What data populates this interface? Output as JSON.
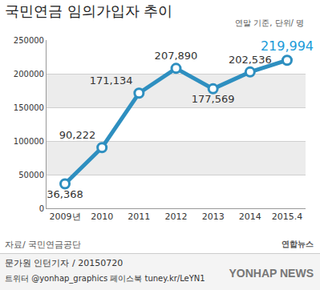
{
  "chart_data": {
    "type": "line",
    "title": "국민연금 임의가입자 추이",
    "subtitle": "연말 기준, 단위/ 명",
    "categories": [
      "2009년",
      "2010",
      "2011",
      "2012",
      "2013",
      "2014",
      "2015.4"
    ],
    "values": [
      36368,
      90222,
      171134,
      207890,
      177569,
      202536,
      219994
    ],
    "value_labels": [
      "36,368",
      "90,222",
      "171,134",
      "207,890",
      "177,569",
      "202,536",
      "219,994"
    ],
    "color": "#2e8fc0",
    "marker": "circle",
    "ylim": [
      0,
      250000
    ],
    "yticks": [
      0,
      50000,
      100000,
      150000,
      200000,
      250000
    ],
    "grid": true,
    "data_labels": true,
    "source": "자료/ 국민연금공단",
    "byline": "문가원 인턴기자 / 20150720",
    "social": "트위터 @yonhap_graphics 페이스북 tuney.kr/LeYN1",
    "logo": [
      "YONHAP NEWS",
      "연합뉴스"
    ]
  }
}
